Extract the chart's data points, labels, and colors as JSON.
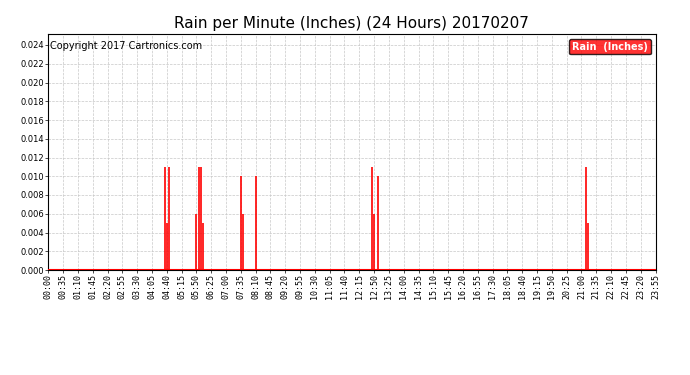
{
  "title": "Rain per Minute (Inches) (24 Hours) 20170207",
  "copyright": "Copyright 2017 Cartronics.com",
  "legend_label": "Rain  (Inches)",
  "legend_color": "#FF0000",
  "background_color": "#FFFFFF",
  "plot_bg_color": "#FFFFFF",
  "line_color": "#FF0000",
  "baseline_color": "#FF0000",
  "grid_color": "#C8C8C8",
  "ylim": [
    0,
    0.0252
  ],
  "yticks": [
    0.0,
    0.002,
    0.004,
    0.006,
    0.008,
    0.01,
    0.012,
    0.014,
    0.016,
    0.018,
    0.02,
    0.022,
    0.024
  ],
  "minutes_per_day": 1440,
  "interval": 5,
  "spikes": [
    {
      "minute": 275,
      "value": 0.011
    },
    {
      "minute": 280,
      "value": 0.005
    },
    {
      "minute": 285,
      "value": 0.011
    },
    {
      "minute": 350,
      "value": 0.006
    },
    {
      "minute": 355,
      "value": 0.011
    },
    {
      "minute": 360,
      "value": 0.011
    },
    {
      "minute": 365,
      "value": 0.005
    },
    {
      "minute": 455,
      "value": 0.01
    },
    {
      "minute": 460,
      "value": 0.006
    },
    {
      "minute": 490,
      "value": 0.01
    },
    {
      "minute": 765,
      "value": 0.011
    },
    {
      "minute": 770,
      "value": 0.006
    },
    {
      "minute": 780,
      "value": 0.01
    },
    {
      "minute": 1270,
      "value": 0.011
    },
    {
      "minute": 1275,
      "value": 0.005
    }
  ],
  "xtick_interval_minutes": 35,
  "title_fontsize": 11,
  "label_fontsize": 6,
  "copyright_fontsize": 7
}
